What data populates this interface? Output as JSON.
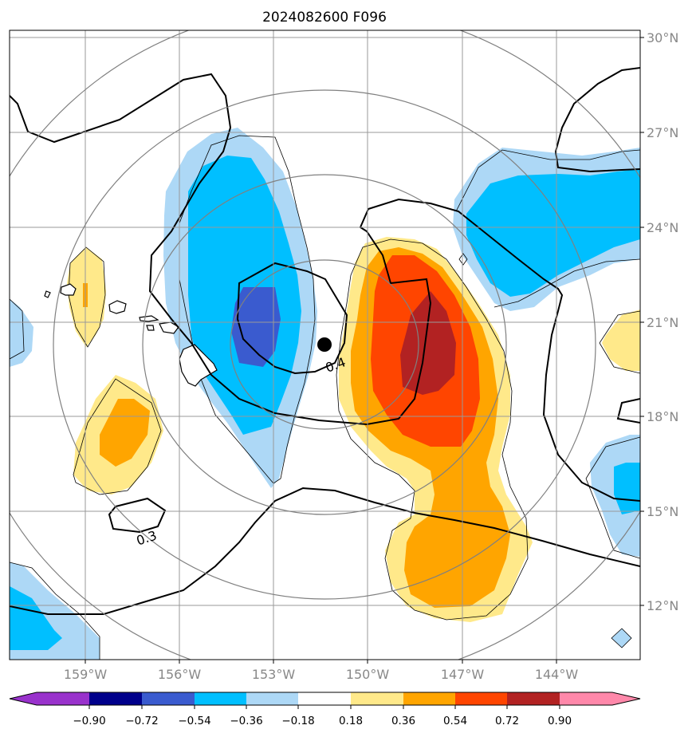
{
  "title": "2024082600 F096",
  "latitude_labels": [
    "30°N",
    "27°N",
    "24°N",
    "21°N",
    "18°N",
    "15°N",
    "12°N"
  ],
  "longitude_labels": [
    "159°W",
    "156°W",
    "153°W",
    "150°W",
    "147°W",
    "144°W"
  ],
  "contour_labels": [
    "0.4",
    "0.3"
  ],
  "colorbar": {
    "ticks": [
      "−0.90",
      "−0.72",
      "−0.54",
      "−0.36",
      "−0.18",
      "0.18",
      "0.36",
      "0.54",
      "0.72",
      "0.90"
    ],
    "colors": [
      "#9932cc",
      "#00008b",
      "#3a5bcf",
      "#00bfff",
      "#add8f6",
      "#ffffff",
      "#ffe98a",
      "#ffa500",
      "#ff4500",
      "#b22222",
      "#ff88aa"
    ]
  },
  "colors": {
    "neg_light": "#add8f6",
    "neg_mid": "#00bfff",
    "neg_dark": "#3a5bcf",
    "pos_light": "#ffe98a",
    "pos_mid": "#ffa500",
    "pos_strong": "#ff4500",
    "pos_dark": "#b22222",
    "grid": "#999999",
    "range_rings": "#808080"
  },
  "storm_center": {
    "lat": 20.4,
    "lon": -151.4
  }
}
